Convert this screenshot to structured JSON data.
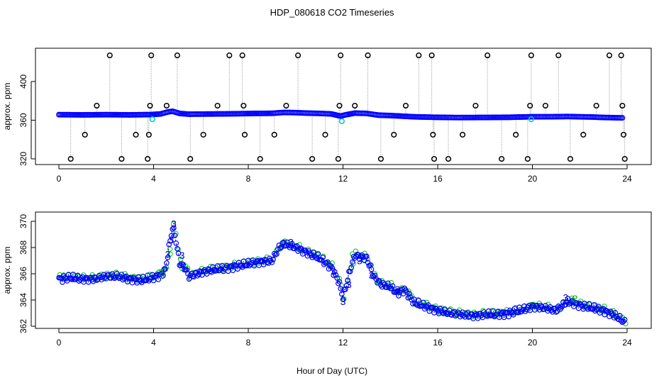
{
  "title": "HDP_080618  CO2 Timeseries",
  "xlabel": "Hour of Day (UTC)",
  "chart_data": [
    {
      "type": "scatter",
      "panel": "top",
      "ylabel": "approx. ppm",
      "xlim": [
        0,
        24
      ],
      "ylim": [
        320,
        430
      ],
      "x_ticks": [
        "0",
        "4",
        "8",
        "12",
        "16",
        "20",
        "24"
      ],
      "y_ticks": [
        "320",
        "360",
        "400"
      ],
      "series": [
        {
          "name": "flagged readings (black)",
          "color": "#000000",
          "x": [
            0.5,
            1.1,
            1.6,
            2.15,
            2.65,
            3.25,
            3.75,
            3.8,
            3.85,
            3.9,
            4.55,
            5.0,
            5.55,
            6.1,
            6.7,
            7.2,
            7.75,
            7.8,
            7.85,
            8.5,
            9.1,
            9.6,
            10.1,
            10.7,
            11.25,
            11.8,
            11.85,
            11.9,
            12.5,
            13.05,
            13.6,
            14.15,
            14.65,
            15.2,
            15.75,
            15.8,
            15.85,
            16.45,
            17.05,
            17.6,
            18.1,
            18.7,
            19.3,
            19.8,
            19.9,
            19.95,
            20.55,
            21.1,
            21.6,
            22.15,
            22.7,
            23.25,
            23.75,
            23.8,
            23.85,
            23.9
          ],
          "y": [
            320,
            345,
            375,
            427,
            320,
            345,
            320,
            345,
            375,
            427,
            375,
            427,
            320,
            345,
            375,
            427,
            427,
            375,
            345,
            320,
            345,
            375,
            427,
            320,
            345,
            320,
            375,
            427,
            375,
            427,
            320,
            345,
            375,
            427,
            427,
            345,
            320,
            320,
            345,
            375,
            427,
            320,
            345,
            320,
            375,
            427,
            375,
            427,
            320,
            345,
            375,
            427,
            427,
            375,
            345,
            320
          ]
        },
        {
          "name": "raw CO2 (blue)",
          "color": "#0000ff",
          "x": [
            0,
            1,
            2,
            3,
            3.9,
            4.3,
            4.6,
            4.8,
            5.1,
            5.5,
            6,
            7,
            7.9,
            8.3,
            9,
            9.5,
            10,
            10.5,
            11,
            11.5,
            11.9,
            12.1,
            12.5,
            13,
            13.5,
            14,
            15,
            15.9,
            16.5,
            17,
            18,
            19,
            19.9,
            20.2,
            21,
            21.5,
            22,
            22.5,
            23,
            23.8
          ],
          "y": [
            365.7,
            365.5,
            365.7,
            365.5,
            365.8,
            366.5,
            368.5,
            369.2,
            367.0,
            366.2,
            366.3,
            366.5,
            366.8,
            367.0,
            367.1,
            368.0,
            367.8,
            367.3,
            367.0,
            366.5,
            364.2,
            365.5,
            367.3,
            367.0,
            365.2,
            364.8,
            363.5,
            363.0,
            362.8,
            362.7,
            362.8,
            363.0,
            363.5,
            363.5,
            363.6,
            363.8,
            363.5,
            363.3,
            362.8,
            362.4
          ]
        },
        {
          "name": "transition points (cyan)",
          "color": "#00cccc",
          "x": [
            3.95,
            11.95,
            19.95
          ],
          "y": [
            361,
            359,
            361
          ]
        }
      ]
    },
    {
      "type": "line",
      "panel": "bottom",
      "ylabel": "approx. ppm",
      "xlim": [
        0,
        24
      ],
      "ylim": [
        362,
        370
      ],
      "x_ticks": [
        "0",
        "4",
        "8",
        "12",
        "16",
        "20",
        "24"
      ],
      "y_ticks": [
        "362",
        "364",
        "366",
        "368",
        "370"
      ],
      "series": [
        {
          "name": "CO2 (blue points, dashed)",
          "color": "#0000ff",
          "x": [
            0,
            0.5,
            1,
            1.5,
            2,
            2.5,
            3,
            3.5,
            3.95,
            4.3,
            4.5,
            4.65,
            4.8,
            4.9,
            5.1,
            5.3,
            5.5,
            6,
            6.5,
            7,
            7.5,
            7.9,
            8.1,
            8.5,
            9,
            9.3,
            9.5,
            10,
            10.5,
            11,
            11.5,
            11.8,
            12,
            12.15,
            12.3,
            12.5,
            13,
            13.3,
            13.6,
            14,
            14.3,
            14.6,
            15,
            15.5,
            16,
            16.5,
            17,
            17.5,
            18,
            18.5,
            19,
            19.5,
            20,
            20.5,
            21,
            21.5,
            22,
            22.5,
            23,
            23.5,
            23.9
          ],
          "y": [
            365.6,
            365.7,
            365.6,
            365.6,
            365.8,
            365.8,
            365.6,
            365.5,
            365.7,
            365.9,
            366.3,
            368.0,
            369.5,
            369.0,
            366.8,
            366.5,
            365.8,
            366.1,
            366.3,
            366.4,
            366.6,
            366.7,
            366.8,
            366.9,
            367.0,
            368.0,
            368.3,
            368.0,
            367.6,
            367.2,
            366.5,
            365.5,
            364.2,
            365.2,
            366.3,
            367.4,
            367.2,
            365.8,
            365.2,
            365.0,
            364.5,
            364.8,
            363.8,
            363.5,
            363.2,
            363.0,
            362.9,
            362.8,
            362.9,
            362.9,
            363.0,
            363.2,
            363.5,
            363.4,
            363.2,
            363.9,
            363.6,
            363.4,
            363.2,
            362.8,
            362.3
          ]
        },
        {
          "name": "CO2 (green points)",
          "color": "#00cc00",
          "x": [
            0.2,
            0.8,
            1.4,
            2.2,
            2.8,
            3.6,
            4.4,
            4.7,
            5.2,
            6.2,
            7.2,
            8.4,
            9.4,
            10.2,
            10.8,
            11.4,
            12.4,
            12.9,
            13.5,
            14.2,
            14.8,
            15.4,
            16.2,
            16.8,
            17.6,
            18.4,
            19.2,
            20.1,
            20.8,
            21.7,
            22.2,
            22.8,
            23.4
          ],
          "y": [
            365.9,
            365.8,
            365.7,
            365.9,
            365.7,
            365.6,
            366.0,
            367.5,
            366.4,
            366.2,
            366.5,
            366.9,
            368.1,
            367.9,
            367.4,
            366.8,
            367.5,
            367.0,
            365.3,
            364.6,
            364.2,
            363.6,
            363.1,
            362.9,
            362.8,
            362.8,
            363.0,
            363.6,
            363.3,
            364.0,
            363.5,
            363.3,
            362.9
          ]
        }
      ],
      "digit_labels": [
        {
          "x": 4.3,
          "y": 366.1,
          "text": "2"
        },
        {
          "x": 4.6,
          "y": 367.5,
          "text": "3"
        },
        {
          "x": 4.75,
          "y": 368.6,
          "text": "3"
        },
        {
          "x": 4.85,
          "y": 369.8,
          "text": "3"
        },
        {
          "x": 5.2,
          "y": 367.4,
          "text": "3"
        },
        {
          "x": 9.8,
          "y": 368.4,
          "text": "3"
        },
        {
          "x": 11.6,
          "y": 366.2,
          "text": "3"
        },
        {
          "x": 12.0,
          "y": 363.9,
          "text": "3"
        },
        {
          "x": 12.25,
          "y": 365.2,
          "text": "3"
        },
        {
          "x": 12.7,
          "y": 367.0,
          "text": "3"
        },
        {
          "x": 13.2,
          "y": 365.9,
          "text": "3"
        },
        {
          "x": 14.3,
          "y": 364.8,
          "text": "3"
        },
        {
          "x": 21.4,
          "y": 364.2,
          "text": "3"
        },
        {
          "x": 21.8,
          "y": 364.1,
          "text": "2"
        }
      ]
    }
  ]
}
